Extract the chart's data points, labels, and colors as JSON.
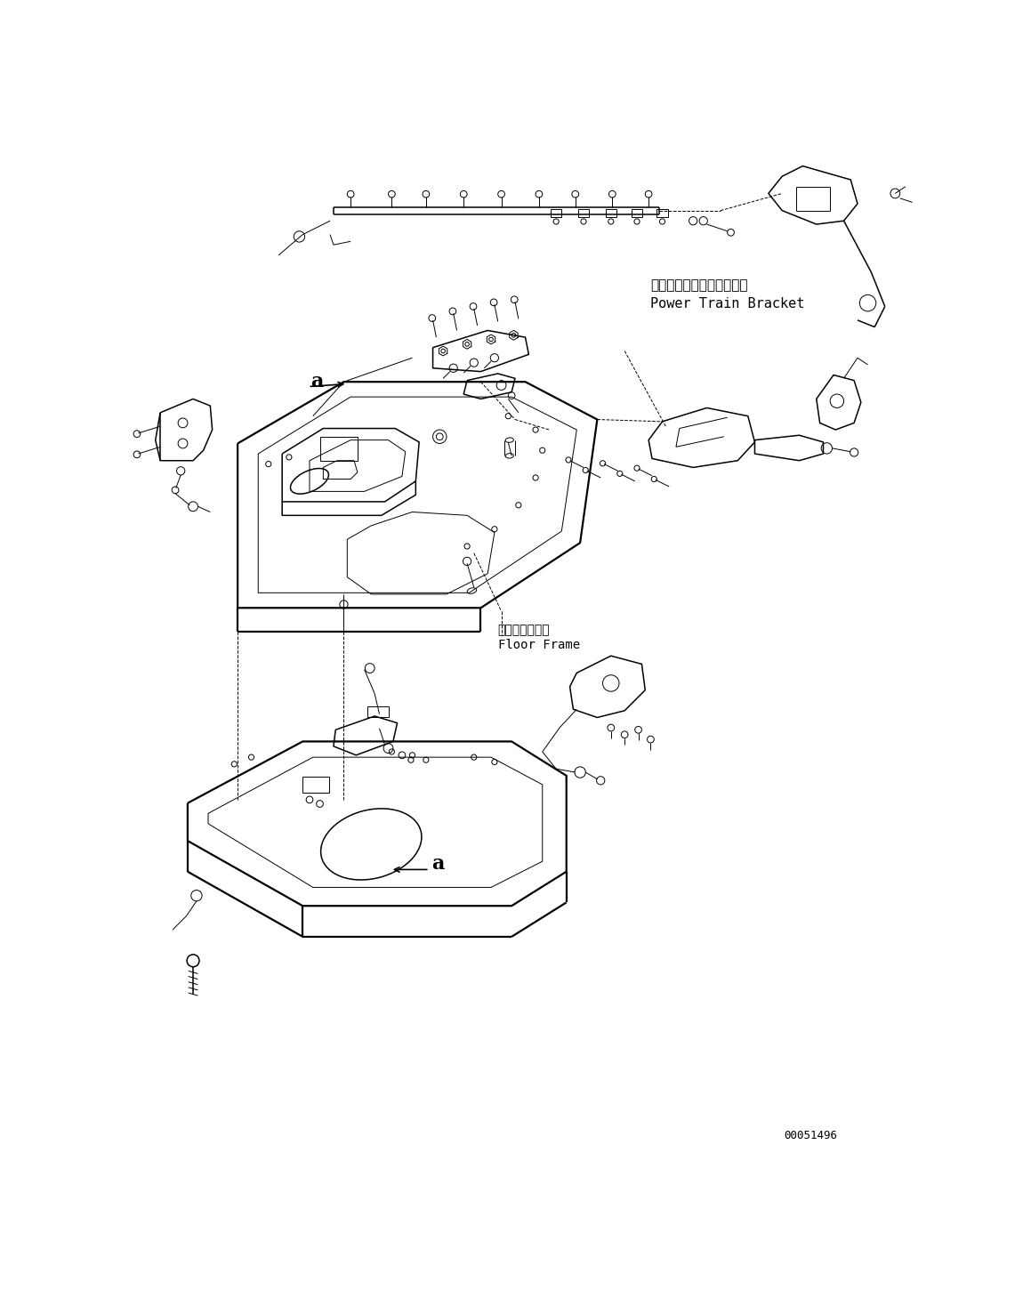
{
  "bg_color": "#ffffff",
  "line_color": "#000000",
  "fig_width": 11.59,
  "fig_height": 14.59,
  "label_ptb_jp": "パワートレインブラケット",
  "label_ptb_en": "Power Train Bracket",
  "label_ff_jp": "フロアフレーム",
  "label_ff_en": "Floor Frame",
  "part_number": "00051496"
}
